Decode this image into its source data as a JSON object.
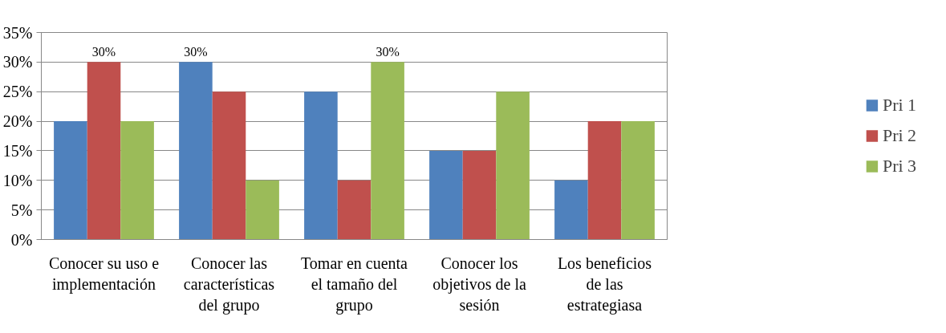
{
  "chart_data": {
    "type": "bar",
    "categories": [
      "Conocer su uso e implementación",
      "Conocer las características del grupo",
      "Tomar en cuenta el tamaño del grupo",
      "Conocer los objetivos de la sesión",
      "Los beneficios de las estrategiasa"
    ],
    "series": [
      {
        "name": "Pri 1",
        "color": "#4f81bd",
        "values": [
          20,
          30,
          25,
          15,
          10
        ],
        "value_labels": [
          null,
          "30%",
          null,
          null,
          null
        ]
      },
      {
        "name": "Pri 2",
        "color": "#c0504d",
        "values": [
          30,
          25,
          10,
          15,
          20
        ],
        "value_labels": [
          "30%",
          null,
          null,
          null,
          null
        ]
      },
      {
        "name": "Pri 3",
        "color": "#9bbb59",
        "values": [
          20,
          10,
          30,
          25,
          20
        ],
        "value_labels": [
          null,
          null,
          "30%",
          null,
          null
        ]
      }
    ],
    "ylim": [
      0,
      35
    ],
    "yticks": [
      {
        "value": 0,
        "label": "0%"
      },
      {
        "value": 5,
        "label": "5%"
      },
      {
        "value": 10,
        "label": "10%"
      },
      {
        "value": 15,
        "label": "15%"
      },
      {
        "value": 20,
        "label": "20%"
      },
      {
        "value": 25,
        "label": "25%"
      },
      {
        "value": 30,
        "label": "30%"
      },
      {
        "value": 35,
        "label": "35%"
      }
    ],
    "grid": "y",
    "legend": "right"
  }
}
